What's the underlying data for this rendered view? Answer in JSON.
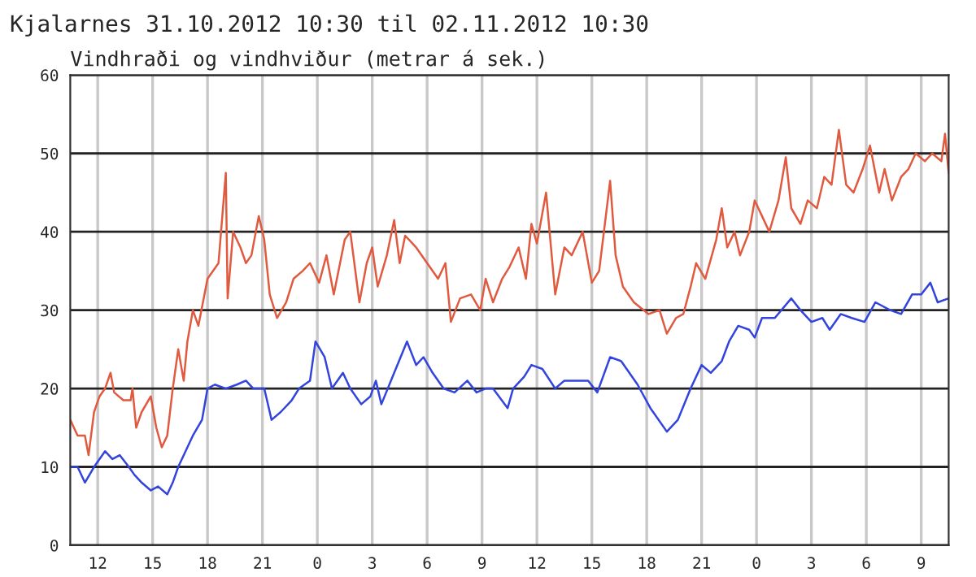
{
  "chart_data": {
    "type": "line",
    "title": "Kjalarnes 31.10.2012 10:30 til 02.11.2012 10:30",
    "subtitle": "Vindhraði og vindhviður (metrar á sek.)",
    "xlim": [
      "2012-10-31T10:30",
      "2012-11-02T10:30"
    ],
    "xticks": [
      {
        "value": "2012-10-31T12:00",
        "label": "12"
      },
      {
        "value": "2012-10-31T15:00",
        "label": "15"
      },
      {
        "value": "2012-10-31T18:00",
        "label": "18"
      },
      {
        "value": "2012-10-31T21:00",
        "label": "21"
      },
      {
        "value": "2012-11-01T00:00",
        "label": "0"
      },
      {
        "value": "2012-11-01T03:00",
        "label": "3"
      },
      {
        "value": "2012-11-01T06:00",
        "label": "6"
      },
      {
        "value": "2012-11-01T09:00",
        "label": "9"
      },
      {
        "value": "2012-11-01T12:00",
        "label": "12"
      },
      {
        "value": "2012-11-01T15:00",
        "label": "15"
      },
      {
        "value": "2012-11-01T18:00",
        "label": "18"
      },
      {
        "value": "2012-11-01T21:00",
        "label": "21"
      },
      {
        "value": "2012-11-02T00:00",
        "label": "0"
      },
      {
        "value": "2012-11-02T03:00",
        "label": "3"
      },
      {
        "value": "2012-11-02T06:00",
        "label": "6"
      },
      {
        "value": "2012-11-02T09:00",
        "label": "9"
      }
    ],
    "ylim": [
      0,
      60
    ],
    "yticks": [
      0,
      10,
      20,
      30,
      40,
      50,
      60
    ],
    "grid": true,
    "series": [
      {
        "color": "#e05a40",
        "x": [
          "2012-10-31T10:30",
          "2012-10-31T10:54",
          "2012-10-31T11:18",
          "2012-10-31T11:30",
          "2012-10-31T11:48",
          "2012-10-31T12:06",
          "2012-10-31T12:24",
          "2012-10-31T12:42",
          "2012-10-31T12:54",
          "2012-10-31T13:24",
          "2012-10-31T13:48",
          "2012-10-31T13:54",
          "2012-10-31T14:06",
          "2012-10-31T14:24",
          "2012-10-31T14:54",
          "2012-10-31T15:12",
          "2012-10-31T15:30",
          "2012-10-31T15:48",
          "2012-10-31T16:06",
          "2012-10-31T16:24",
          "2012-10-31T16:42",
          "2012-10-31T16:54",
          "2012-10-31T17:12",
          "2012-10-31T17:30",
          "2012-10-31T18:00",
          "2012-10-31T18:36",
          "2012-10-31T19:00",
          "2012-10-31T19:06",
          "2012-10-31T19:24",
          "2012-10-31T19:48",
          "2012-10-31T20:06",
          "2012-10-31T20:24",
          "2012-10-31T20:48",
          "2012-10-31T21:06",
          "2012-10-31T21:24",
          "2012-10-31T21:48",
          "2012-10-31T22:18",
          "2012-10-31T22:42",
          "2012-10-31T23:12",
          "2012-10-31T23:36",
          "2012-11-01T00:06",
          "2012-11-01T00:30",
          "2012-11-01T00:54",
          "2012-11-01T01:30",
          "2012-11-01T01:48",
          "2012-11-01T02:18",
          "2012-11-01T02:42",
          "2012-11-01T03:00",
          "2012-11-01T03:18",
          "2012-11-01T03:48",
          "2012-11-01T04:12",
          "2012-11-01T04:30",
          "2012-11-01T04:48",
          "2012-11-01T05:24",
          "2012-11-01T06:00",
          "2012-11-01T06:36",
          "2012-11-01T07:00",
          "2012-11-01T07:18",
          "2012-11-01T07:48",
          "2012-11-01T08:24",
          "2012-11-01T08:54",
          "2012-11-01T09:12",
          "2012-11-01T09:36",
          "2012-11-01T10:06",
          "2012-11-01T10:30",
          "2012-11-01T11:00",
          "2012-11-01T11:24",
          "2012-11-01T11:42",
          "2012-11-01T12:00",
          "2012-11-01T12:30",
          "2012-11-01T13:00",
          "2012-11-01T13:30",
          "2012-11-01T13:54",
          "2012-11-01T14:30",
          "2012-11-01T15:00",
          "2012-11-01T15:24",
          "2012-11-01T16:00",
          "2012-11-01T16:18",
          "2012-11-01T16:42",
          "2012-11-01T17:18",
          "2012-11-01T18:06",
          "2012-11-01T18:42",
          "2012-11-01T19:06",
          "2012-11-01T19:36",
          "2012-11-01T20:00",
          "2012-11-01T20:24",
          "2012-11-01T20:42",
          "2012-11-01T21:12",
          "2012-11-01T21:48",
          "2012-11-01T22:06",
          "2012-11-01T22:24",
          "2012-11-01T22:48",
          "2012-11-01T23:06",
          "2012-11-01T23:36",
          "2012-11-01T23:54",
          "2012-11-02T00:18",
          "2012-11-02T00:42",
          "2012-11-02T01:12",
          "2012-11-02T01:36",
          "2012-11-02T01:54",
          "2012-11-02T02:24",
          "2012-11-02T02:48",
          "2012-11-02T03:18",
          "2012-11-02T03:42",
          "2012-11-02T04:06",
          "2012-11-02T04:30",
          "2012-11-02T04:54",
          "2012-11-02T05:18",
          "2012-11-02T05:48",
          "2012-11-02T06:12",
          "2012-11-02T06:42",
          "2012-11-02T07:00",
          "2012-11-02T07:24",
          "2012-11-02T07:54",
          "2012-11-02T08:18",
          "2012-11-02T08:42",
          "2012-11-02T09:12",
          "2012-11-02T09:36",
          "2012-11-02T10:06",
          "2012-11-02T10:18",
          "2012-11-02T10:30"
        ],
        "values": [
          16,
          14,
          14,
          11.5,
          17,
          19,
          20,
          22,
          19.5,
          18.5,
          18.5,
          20,
          15,
          17,
          19,
          15,
          12.5,
          14,
          20,
          25,
          21,
          26,
          30,
          28,
          34,
          36,
          47.5,
          31.5,
          40,
          38,
          36,
          37,
          42,
          39,
          32,
          29,
          31,
          34,
          35,
          36,
          33.5,
          37,
          32,
          39,
          40,
          31,
          36,
          38,
          33,
          37,
          41.5,
          36,
          39.5,
          38,
          36,
          34,
          36,
          28.5,
          31.5,
          32,
          30,
          34,
          31,
          34,
          35.5,
          38,
          34,
          41,
          38.5,
          45,
          32,
          38,
          37,
          40,
          33.5,
          35,
          46.5,
          37,
          33,
          31,
          29.5,
          30,
          27,
          29,
          29.5,
          33,
          36,
          34,
          39,
          43,
          38,
          40,
          37,
          40,
          44,
          42,
          40,
          44,
          49.5,
          43,
          41,
          44,
          43,
          47,
          46,
          53,
          46,
          45,
          48,
          51,
          45,
          48,
          44,
          47,
          48,
          50,
          49,
          50,
          49,
          52.5,
          47.5
        ]
      },
      {
        "color": "#3344dd",
        "x": [
          "2012-10-31T10:30",
          "2012-10-31T10:54",
          "2012-10-31T11:18",
          "2012-10-31T11:48",
          "2012-10-31T12:24",
          "2012-10-31T12:48",
          "2012-10-31T13:12",
          "2012-10-31T13:42",
          "2012-10-31T14:00",
          "2012-10-31T14:24",
          "2012-10-31T14:54",
          "2012-10-31T15:18",
          "2012-10-31T15:48",
          "2012-10-31T16:06",
          "2012-10-31T16:24",
          "2012-10-31T16:48",
          "2012-10-31T17:12",
          "2012-10-31T17:42",
          "2012-10-31T18:00",
          "2012-10-31T18:24",
          "2012-10-31T19:00",
          "2012-10-31T19:36",
          "2012-10-31T20:06",
          "2012-10-31T20:30",
          "2012-10-31T21:06",
          "2012-10-31T21:30",
          "2012-10-31T22:00",
          "2012-10-31T22:36",
          "2012-10-31T23:00",
          "2012-10-31T23:36",
          "2012-10-31T23:54",
          "2012-11-01T00:24",
          "2012-11-01T00:48",
          "2012-11-01T01:24",
          "2012-11-01T01:48",
          "2012-11-01T02:24",
          "2012-11-01T02:54",
          "2012-11-01T03:12",
          "2012-11-01T03:30",
          "2012-11-01T04:12",
          "2012-11-01T04:54",
          "2012-11-01T05:24",
          "2012-11-01T05:48",
          "2012-11-01T06:18",
          "2012-11-01T06:54",
          "2012-11-01T07:30",
          "2012-11-01T08:12",
          "2012-11-01T08:42",
          "2012-11-01T09:12",
          "2012-11-01T09:36",
          "2012-11-01T10:24",
          "2012-11-01T10:42",
          "2012-11-01T11:18",
          "2012-11-01T11:42",
          "2012-11-01T12:18",
          "2012-11-01T13:00",
          "2012-11-01T13:30",
          "2012-11-01T14:12",
          "2012-11-01T14:48",
          "2012-11-01T15:18",
          "2012-11-01T16:00",
          "2012-11-01T16:36",
          "2012-11-01T17:30",
          "2012-11-01T18:12",
          "2012-11-01T19:06",
          "2012-11-01T19:42",
          "2012-11-01T20:24",
          "2012-11-01T21:00",
          "2012-11-01T21:30",
          "2012-11-01T22:06",
          "2012-11-01T22:30",
          "2012-11-01T23:00",
          "2012-11-01T23:36",
          "2012-11-01T23:54",
          "2012-11-02T00:18",
          "2012-11-02T01:00",
          "2012-11-02T01:54",
          "2012-11-02T02:24",
          "2012-11-02T03:00",
          "2012-11-02T03:36",
          "2012-11-02T04:00",
          "2012-11-02T04:36",
          "2012-11-02T05:12",
          "2012-11-02T05:54",
          "2012-11-02T06:30",
          "2012-11-02T07:18",
          "2012-11-02T07:54",
          "2012-11-02T08:30",
          "2012-11-02T09:00",
          "2012-11-02T09:30",
          "2012-11-02T09:54",
          "2012-11-02T10:30"
        ],
        "values": [
          10,
          10,
          8,
          10,
          12,
          11,
          11.5,
          10,
          9,
          8,
          7,
          7.5,
          6.5,
          8,
          10,
          12,
          14,
          16,
          20,
          20.5,
          20,
          20.5,
          21,
          20,
          20,
          16,
          17,
          18.5,
          20,
          21,
          26,
          24,
          20,
          22,
          20,
          18,
          19,
          21,
          18,
          22,
          26,
          23,
          24,
          22,
          20,
          19.5,
          21,
          19.5,
          20,
          20,
          17.5,
          20,
          21.5,
          23,
          22.5,
          20,
          21,
          21,
          21,
          19.5,
          24,
          23.5,
          20.5,
          17.5,
          14.5,
          16,
          20,
          23,
          22,
          23.5,
          26,
          28,
          27.5,
          26.5,
          29,
          29,
          31.5,
          30,
          28.5,
          29,
          27.5,
          29.5,
          29,
          28.5,
          31,
          30,
          29.5,
          32,
          32,
          33.5,
          31,
          31.5
        ]
      }
    ]
  }
}
